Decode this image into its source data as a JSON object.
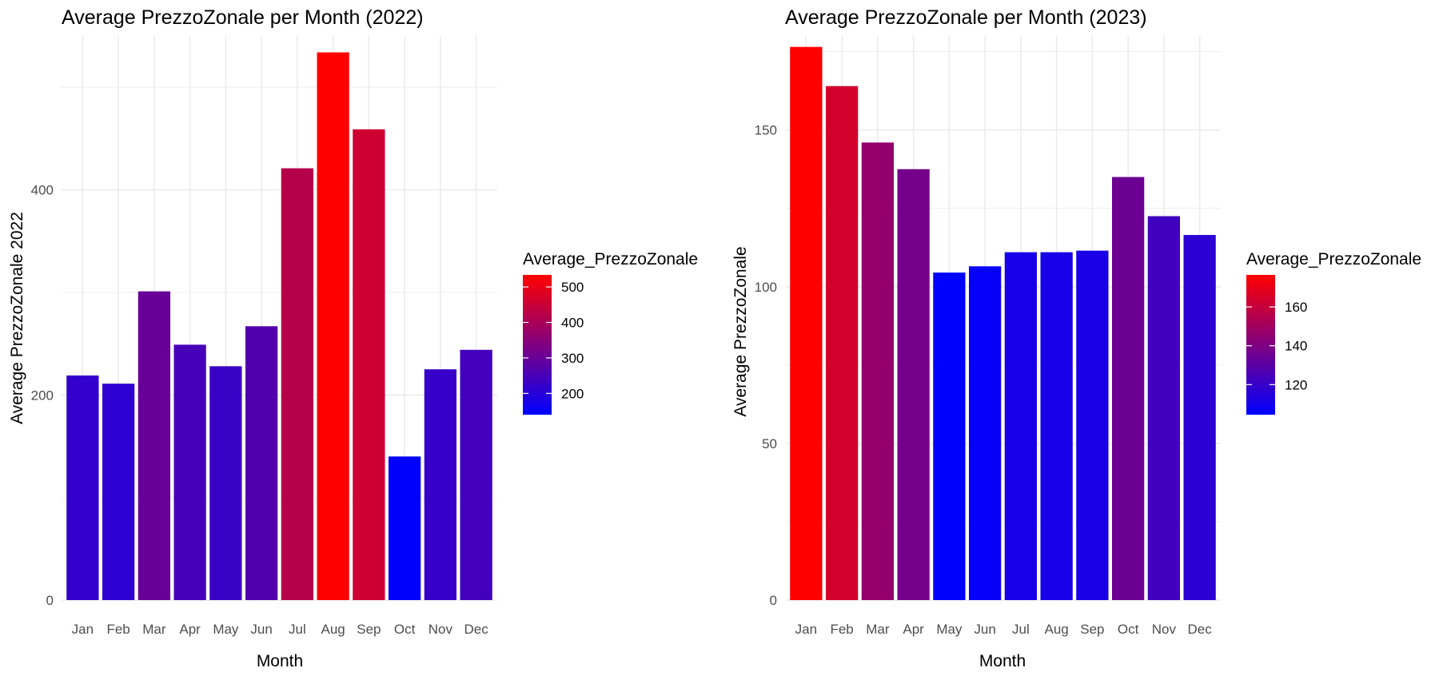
{
  "chart_data": [
    {
      "type": "bar",
      "title": "Average PrezzoZonale per Month (2022)",
      "xlabel": "Month",
      "ylabel": "Average PrezzoZonale 2022",
      "categories": [
        "Jan",
        "Feb",
        "Mar",
        "Apr",
        "May",
        "Jun",
        "Jul",
        "Aug",
        "Sep",
        "Oct",
        "Nov",
        "Dec"
      ],
      "values": [
        219,
        211,
        301,
        249,
        228,
        267,
        421,
        534,
        459,
        140,
        225,
        244
      ],
      "ylim": [
        0,
        550
      ],
      "y_ticks": [
        0,
        200,
        400
      ],
      "grid": true,
      "legend": {
        "title": "Average_PrezzoZonale",
        "position": "right",
        "ticks": [
          200,
          300,
          400,
          500
        ],
        "range": [
          140,
          534
        ],
        "low_color": "#0000ff",
        "high_color": "#ff0000"
      }
    },
    {
      "type": "bar",
      "title": "Average PrezzoZonale per Month (2023)",
      "xlabel": "Month",
      "ylabel": "Average PrezzoZonale",
      "categories": [
        "Jan",
        "Feb",
        "Mar",
        "Apr",
        "May",
        "Jun",
        "Jul",
        "Aug",
        "Sep",
        "Oct",
        "Nov",
        "Dec"
      ],
      "values": [
        176.5,
        164,
        146,
        137.5,
        104.5,
        106.5,
        111,
        111,
        111.5,
        135,
        122.5,
        116.5
      ],
      "ylim": [
        0,
        180
      ],
      "y_ticks": [
        0,
        50,
        100,
        150
      ],
      "grid": true,
      "legend": {
        "title": "Average_PrezzoZonale",
        "position": "right",
        "ticks": [
          120,
          140,
          160
        ],
        "range": [
          104.5,
          176.5
        ],
        "low_color": "#0000ff",
        "high_color": "#ff0000"
      }
    }
  ]
}
